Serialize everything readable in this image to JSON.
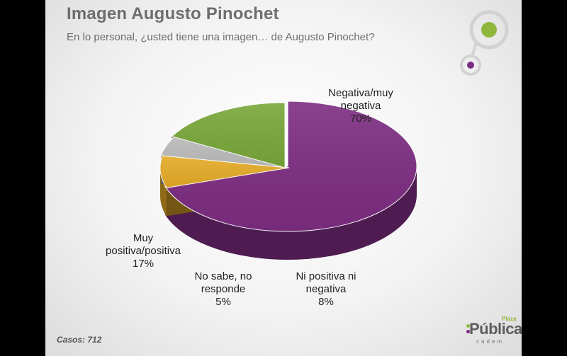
{
  "header": {
    "title": "Imagen Augusto Pinochet",
    "subtitle": "En lo personal, ¿usted tiene una imagen… de Augusto Pinochet?"
  },
  "footer": {
    "casos": "Casos: 712",
    "brand_small": "Plaza",
    "brand_main": "Pública",
    "brand_sub": "cadem"
  },
  "chart_data": {
    "type": "pie",
    "title": "Imagen Augusto Pinochet",
    "subtitle": "En lo personal, ¿usted tiene una imagen… de Augusto Pinochet?",
    "labels": [
      "Negativa/muy negativa",
      "Ni positiva ni negativa",
      "No sabe, no responde",
      "Muy positiva/positiva"
    ],
    "values": [
      70,
      8,
      5,
      17
    ],
    "colors": [
      "#7d2d82",
      "#e6ac28",
      "#bcbcbc",
      "#7aa83a"
    ],
    "slice_labels": [
      {
        "lines": [
          "Negativa/muy",
          "negativa",
          "70%"
        ]
      },
      {
        "lines": [
          "Ni positiva ni",
          "negativa",
          "8%"
        ]
      },
      {
        "lines": [
          "No sabe, no",
          "responde",
          "5%"
        ]
      },
      {
        "lines": [
          "Muy",
          "positiva/positiva",
          "17%"
        ]
      }
    ],
    "annotations": [
      "Casos: 712"
    ]
  }
}
